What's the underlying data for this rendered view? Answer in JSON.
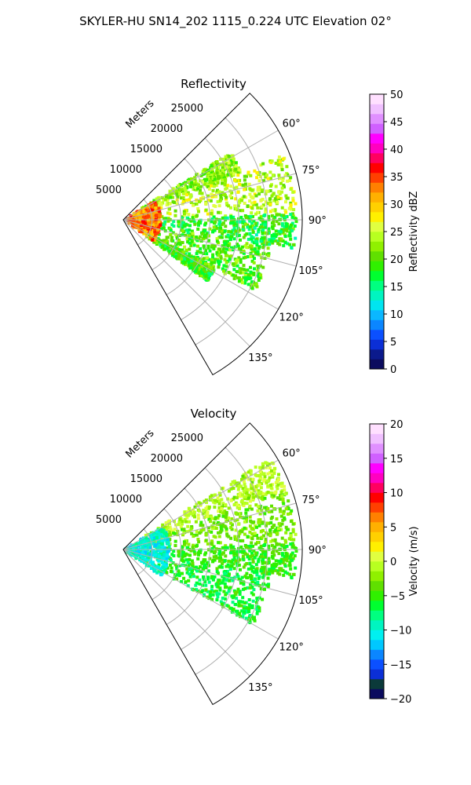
{
  "figure_title": "SKYLER-HU  SN14_202  1115_0.224 UTC Elevation 02°",
  "chart_data": [
    {
      "type": "heatmap",
      "subtype": "polar-sector",
      "title": "Reflectivity",
      "range_label": "Meters",
      "range_ticks": [
        "5000",
        "10000",
        "15000",
        "20000",
        "25000"
      ],
      "range_values": [
        5000,
        10000,
        15000,
        20000,
        25000
      ],
      "range_max": 31000,
      "azimuth_min": 45,
      "azimuth_max": 150,
      "azimuth_ticks": [
        "60°",
        "75°",
        "90°",
        "105°",
        "120°",
        "135°"
      ],
      "azimuth_values": [
        60,
        75,
        90,
        105,
        120,
        135
      ],
      "grid": true,
      "colorbar": {
        "label": "Reflectivity dBZ",
        "min": 0,
        "max": 50,
        "ticks": [
          "0",
          "5",
          "10",
          "15",
          "20",
          "25",
          "30",
          "35",
          "40",
          "45",
          "50"
        ],
        "tick_values": [
          0,
          5,
          10,
          15,
          20,
          25,
          30,
          35,
          40,
          45,
          50
        ],
        "colors": [
          "#0b0b5e",
          "#0b1a8c",
          "#0b2fd6",
          "#0b50ff",
          "#0b86ff",
          "#0bb7ff",
          "#00e5f0",
          "#00f5c0",
          "#00ff80",
          "#00ff30",
          "#30f000",
          "#60e000",
          "#90f000",
          "#b8ff20",
          "#e0ff40",
          "#fff000",
          "#ffd000",
          "#ffb000",
          "#ff8000",
          "#ff4000",
          "#ff0000",
          "#ff0060",
          "#ff00c0",
          "#ff00ff",
          "#d060ff",
          "#e090ff",
          "#f0c0ff",
          "#ffe0ff"
        ]
      },
      "echo_summary": [
        {
          "azimuth_from": 58,
          "azimuth_to": 68,
          "range_from": 2000,
          "range_to": 22000,
          "dbz": 22
        },
        {
          "azimuth_from": 68,
          "azimuth_to": 88,
          "range_from": 1000,
          "range_to": 30000,
          "dbz": 24
        },
        {
          "azimuth_from": 88,
          "azimuth_to": 100,
          "range_from": 3000,
          "range_to": 30000,
          "dbz": 18
        },
        {
          "azimuth_from": 100,
          "azimuth_to": 118,
          "range_from": 1000,
          "range_to": 26000,
          "dbz": 20
        },
        {
          "azimuth_from": 118,
          "azimuth_to": 126,
          "range_from": 4000,
          "range_to": 18000,
          "dbz": 19
        },
        {
          "azimuth_from": 60,
          "azimuth_to": 125,
          "range_from": 0,
          "range_to": 6500,
          "dbz": 33
        }
      ]
    },
    {
      "type": "heatmap",
      "subtype": "polar-sector",
      "title": "Velocity",
      "range_label": "Meters",
      "range_ticks": [
        "5000",
        "10000",
        "15000",
        "20000",
        "25000"
      ],
      "range_values": [
        5000,
        10000,
        15000,
        20000,
        25000
      ],
      "range_max": 31000,
      "azimuth_min": 45,
      "azimuth_max": 150,
      "azimuth_ticks": [
        "60°",
        "75°",
        "90°",
        "105°",
        "120°",
        "135°"
      ],
      "azimuth_values": [
        60,
        75,
        90,
        105,
        120,
        135
      ],
      "grid": true,
      "colorbar": {
        "label": "Velocity (m/s)",
        "min": -20,
        "max": 20,
        "ticks": [
          "−20",
          "−15",
          "−10",
          "−5",
          "0",
          "5",
          "10",
          "15",
          "20"
        ],
        "tick_values": [
          -20,
          -15,
          -10,
          -5,
          0,
          5,
          10,
          15,
          20
        ],
        "colors": [
          "#0b0b5e",
          "#0b3a3a",
          "#0b2fd6",
          "#0b50ff",
          "#0b86ff",
          "#00c8ff",
          "#00f0f0",
          "#00f5c0",
          "#00ff80",
          "#00ff30",
          "#30f000",
          "#60e000",
          "#90f000",
          "#b8ff20",
          "#e0ff40",
          "#fff000",
          "#ffd000",
          "#ffb000",
          "#ff8000",
          "#ff4000",
          "#ff0000",
          "#ff0060",
          "#ff00c0",
          "#ff00ff",
          "#d060ff",
          "#e090ff",
          "#f0c0ff",
          "#ffe0ff"
        ]
      },
      "echo_summary": [
        {
          "azimuth_from": 58,
          "azimuth_to": 70,
          "range_from": 2000,
          "range_to": 30000,
          "ms": -1
        },
        {
          "azimuth_from": 70,
          "azimuth_to": 88,
          "range_from": 1000,
          "range_to": 30000,
          "ms": -3
        },
        {
          "azimuth_from": 88,
          "azimuth_to": 100,
          "range_from": 3000,
          "range_to": 30000,
          "ms": -5
        },
        {
          "azimuth_from": 100,
          "azimuth_to": 120,
          "range_from": 1000,
          "range_to": 26000,
          "ms": -6
        },
        {
          "azimuth_from": 60,
          "azimuth_to": 125,
          "range_from": 0,
          "range_to": 8000,
          "ms": -10
        }
      ]
    }
  ]
}
